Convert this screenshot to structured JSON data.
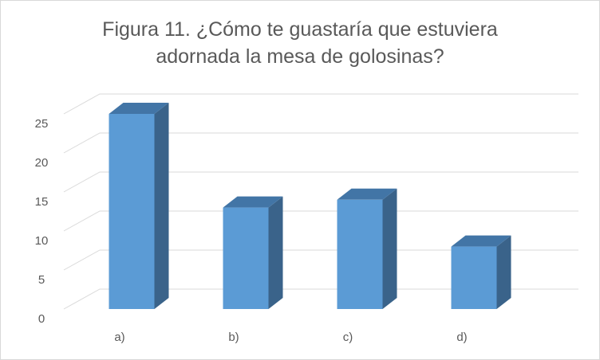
{
  "chart_data": {
    "type": "bar",
    "title_lines": [
      "Figura 11. ¿Cómo te guastaría que estuviera",
      "adornada la mesa de golosinas?"
    ],
    "categories": [
      "a)",
      "b)",
      "c)",
      "d)"
    ],
    "values": [
      25,
      13,
      14,
      8
    ],
    "ylim": [
      0,
      25
    ],
    "yticks": [
      "0",
      "5",
      "10",
      "15",
      "20",
      "25"
    ],
    "grid": true,
    "three_d": true,
    "colors": {
      "front": "#5b9bd5",
      "side": "#3a638a",
      "top": "#4275a6",
      "grid": "#d9d9d9"
    }
  }
}
